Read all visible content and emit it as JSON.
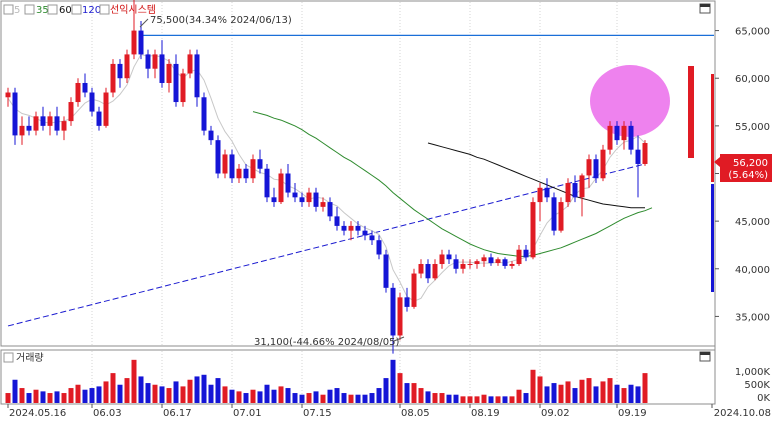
{
  "legend": {
    "ma_labels": [
      "5",
      "35",
      "60",
      "120"
    ],
    "ma_colors": [
      "#bbbbbb",
      "#2e8b2e",
      "#111111",
      "#1a1ad0"
    ],
    "stock_name": "선익시스템",
    "stock_color": "#d01010"
  },
  "annotations": {
    "high_label": "75,500(34.34% 2024/06/13)",
    "low_label": "31,100(-44.66% 2024/08/05)",
    "current_price": "56,200",
    "current_change": "(5.64%)"
  },
  "volume_panel": {
    "label": "거래량",
    "ticks": [
      "1,000K",
      "500K",
      "0K"
    ]
  },
  "colors": {
    "up": "#e01b24",
    "down": "#1515d6",
    "hline": "#1a6fd8",
    "circle": "#ee82ee",
    "bg": "#ffffff"
  },
  "chart_data": {
    "type": "candlestick",
    "ylim": [
      32000,
      68000
    ],
    "yticks": [
      35000,
      40000,
      45000,
      50000,
      55000,
      60000,
      65000
    ],
    "ytick_labels": [
      "35,000",
      "40,000",
      "45,000",
      "50,000",
      "55,000",
      "60,000",
      "65,000"
    ],
    "xtick_labels": [
      "2024.05.16",
      "06.03",
      "06.17",
      "07.01",
      "07.15",
      "08.05",
      "08.19",
      "09.02",
      "09.19",
      "2024.10.08"
    ],
    "xtick_index": [
      0,
      12,
      22,
      32,
      42,
      56,
      66,
      76,
      87,
      103
    ],
    "resistance_level": 64500,
    "candles": [
      [
        58000,
        59000,
        57000,
        58500,
        60
      ],
      [
        58500,
        59000,
        53000,
        54000,
        140
      ],
      [
        54000,
        56000,
        53000,
        55000,
        90
      ],
      [
        55000,
        56000,
        54000,
        54500,
        60
      ],
      [
        54500,
        56500,
        54000,
        56000,
        80
      ],
      [
        56000,
        57000,
        54500,
        55000,
        70
      ],
      [
        55000,
        56500,
        54000,
        56000,
        60
      ],
      [
        56000,
        57000,
        54000,
        54500,
        70
      ],
      [
        54500,
        56000,
        53500,
        55500,
        60
      ],
      [
        55500,
        58000,
        55000,
        57500,
        90
      ],
      [
        57500,
        60000,
        57000,
        59500,
        110
      ],
      [
        59500,
        60500,
        58000,
        58500,
        80
      ],
      [
        58500,
        59000,
        56000,
        56500,
        90
      ],
      [
        56500,
        57000,
        54500,
        55000,
        100
      ],
      [
        55000,
        59000,
        54800,
        58500,
        130
      ],
      [
        58500,
        62000,
        58000,
        61500,
        180
      ],
      [
        61500,
        62000,
        59000,
        60000,
        110
      ],
      [
        60000,
        63000,
        59500,
        62500,
        150
      ],
      [
        62500,
        75500,
        62000,
        65000,
        260
      ],
      [
        65000,
        66000,
        62000,
        62500,
        160
      ],
      [
        62500,
        63000,
        60000,
        61000,
        120
      ],
      [
        61000,
        63000,
        60000,
        62500,
        110
      ],
      [
        62500,
        64000,
        59000,
        59500,
        100
      ],
      [
        59500,
        62000,
        58500,
        61500,
        90
      ],
      [
        61500,
        62500,
        57000,
        57500,
        130
      ],
      [
        57500,
        61000,
        57000,
        60500,
        100
      ],
      [
        60500,
        63000,
        60000,
        62500,
        140
      ],
      [
        62500,
        63000,
        57000,
        58000,
        160
      ],
      [
        58000,
        58500,
        54000,
        54500,
        170
      ],
      [
        54500,
        55000,
        53000,
        53500,
        110
      ],
      [
        53500,
        54000,
        49500,
        50000,
        150
      ],
      [
        50000,
        52500,
        49500,
        52000,
        100
      ],
      [
        52000,
        52500,
        49000,
        49500,
        80
      ],
      [
        49500,
        51000,
        49000,
        50500,
        70
      ],
      [
        50500,
        51000,
        49000,
        49500,
        60
      ],
      [
        49500,
        52000,
        49000,
        51500,
        80
      ],
      [
        51500,
        52500,
        50000,
        50500,
        70
      ],
      [
        50500,
        51000,
        47000,
        47500,
        110
      ],
      [
        47500,
        48500,
        46500,
        47000,
        80
      ],
      [
        47000,
        50500,
        46800,
        50000,
        100
      ],
      [
        50000,
        51000,
        47500,
        48000,
        90
      ],
      [
        48000,
        49000,
        47000,
        47500,
        60
      ],
      [
        47500,
        48000,
        46500,
        47000,
        50
      ],
      [
        47000,
        48500,
        46500,
        48000,
        60
      ],
      [
        48000,
        48500,
        46000,
        46500,
        70
      ],
      [
        46500,
        47500,
        46000,
        47000,
        50
      ],
      [
        47000,
        47500,
        45000,
        45500,
        80
      ],
      [
        45500,
        46500,
        44000,
        44500,
        90
      ],
      [
        44500,
        45000,
        43500,
        44000,
        60
      ],
      [
        44000,
        45000,
        43000,
        44500,
        50
      ],
      [
        44500,
        45000,
        43500,
        44000,
        50
      ],
      [
        44000,
        44500,
        43000,
        43500,
        50
      ],
      [
        43500,
        44000,
        42500,
        43000,
        60
      ],
      [
        43000,
        43500,
        41000,
        41500,
        90
      ],
      [
        41500,
        42000,
        37500,
        38000,
        150
      ],
      [
        38000,
        38500,
        31100,
        33000,
        260
      ],
      [
        33000,
        37500,
        32500,
        37000,
        180
      ],
      [
        37000,
        38000,
        35500,
        36000,
        120
      ],
      [
        36000,
        40000,
        35800,
        39500,
        120
      ],
      [
        39500,
        41000,
        39000,
        40500,
        90
      ],
      [
        40500,
        41000,
        38500,
        39000,
        70
      ],
      [
        39000,
        41000,
        38800,
        40500,
        60
      ],
      [
        40500,
        42000,
        40000,
        41500,
        60
      ],
      [
        41500,
        42000,
        40500,
        41000,
        50
      ],
      [
        41000,
        41500,
        39500,
        40000,
        50
      ],
      [
        40000,
        41000,
        39500,
        40500,
        40
      ],
      [
        40500,
        41000,
        40000,
        40500,
        40
      ],
      [
        40500,
        41000,
        40000,
        40800,
        40
      ],
      [
        40800,
        41500,
        40200,
        41200,
        50
      ],
      [
        41200,
        41600,
        40300,
        40600,
        40
      ],
      [
        40600,
        41200,
        40300,
        41000,
        40
      ],
      [
        41000,
        41200,
        40000,
        40300,
        40
      ],
      [
        40300,
        40800,
        40000,
        40500,
        40
      ],
      [
        40500,
        42500,
        40300,
        42000,
        80
      ],
      [
        42000,
        42500,
        40800,
        41200,
        60
      ],
      [
        41200,
        47500,
        41000,
        47000,
        200
      ],
      [
        47000,
        49000,
        45000,
        48500,
        160
      ],
      [
        48500,
        49500,
        47000,
        47500,
        100
      ],
      [
        47500,
        48000,
        43500,
        44000,
        120
      ],
      [
        44000,
        47500,
        43800,
        47000,
        110
      ],
      [
        47000,
        49500,
        46500,
        49000,
        130
      ],
      [
        49000,
        49800,
        47000,
        47500,
        90
      ],
      [
        47500,
        50000,
        45500,
        49800,
        140
      ],
      [
        49800,
        52000,
        48500,
        51500,
        150
      ],
      [
        51500,
        52000,
        49000,
        49500,
        100
      ],
      [
        49500,
        53000,
        49200,
        52500,
        130
      ],
      [
        52500,
        55500,
        52000,
        55000,
        150
      ],
      [
        55000,
        55500,
        53000,
        53500,
        110
      ],
      [
        53500,
        55500,
        52500,
        55000,
        90
      ],
      [
        55000,
        55500,
        52000,
        52500,
        110
      ],
      [
        52500,
        54000,
        47500,
        51000,
        100
      ],
      [
        51000,
        53500,
        50800,
        53200,
        180
      ]
    ],
    "ma5": [
      57900,
      56800,
      56300,
      56100,
      55800,
      55400,
      55300,
      55400,
      55500,
      55800,
      56600,
      57400,
      57800,
      57600,
      57200,
      57600,
      58300,
      59300,
      61200,
      62500,
      62300,
      62400,
      62200,
      61800,
      60700,
      60000,
      60700,
      60900,
      59800,
      57900,
      55800,
      54400,
      53400,
      52000,
      50900,
      50500,
      50100,
      49900,
      49400,
      49300,
      48700,
      48400,
      47900,
      47300,
      47500,
      47400,
      46900,
      46600,
      45900,
      45300,
      44700,
      44300,
      44000,
      43600,
      42300,
      39900,
      38600,
      37100,
      36600,
      36900,
      38100,
      38800,
      39600,
      40300,
      40700,
      40700,
      40700,
      40600,
      40600,
      40600,
      40700,
      40600,
      40800,
      41000,
      41200,
      42100,
      43500,
      44800,
      45600,
      46000,
      46600,
      47800,
      48400,
      48500,
      49500,
      50400,
      51700,
      52600,
      53300,
      53500,
      53900,
      53200
    ],
    "ma35": [
      null,
      null,
      null,
      null,
      null,
      null,
      null,
      null,
      null,
      null,
      null,
      null,
      null,
      null,
      null,
      null,
      null,
      null,
      null,
      null,
      null,
      null,
      null,
      null,
      null,
      null,
      null,
      null,
      null,
      null,
      null,
      null,
      null,
      null,
      null,
      56500,
      56300,
      56100,
      55800,
      55600,
      55300,
      55000,
      54600,
      54100,
      53700,
      53200,
      52700,
      52200,
      51700,
      51300,
      50800,
      50300,
      49800,
      49300,
      48700,
      48000,
      47400,
      46800,
      46200,
      45700,
      45200,
      44700,
      44200,
      43800,
      43400,
      43000,
      42600,
      42300,
      42000,
      41800,
      41600,
      41500,
      41400,
      41300,
      41300,
      41400,
      41600,
      41800,
      42000,
      42200,
      42500,
      42800,
      43100,
      43400,
      43700,
      44100,
      44500,
      44900,
      45300,
      45600,
      45900,
      46100,
      46400
    ],
    "ma60": [
      null,
      null,
      null,
      null,
      null,
      null,
      null,
      null,
      null,
      null,
      null,
      null,
      null,
      null,
      null,
      null,
      null,
      null,
      null,
      null,
      null,
      null,
      null,
      null,
      null,
      null,
      null,
      null,
      null,
      null,
      null,
      null,
      null,
      null,
      null,
      null,
      null,
      null,
      null,
      null,
      null,
      null,
      null,
      null,
      null,
      null,
      null,
      null,
      null,
      null,
      null,
      null,
      null,
      null,
      null,
      null,
      null,
      null,
      null,
      null,
      53200,
      53000,
      52800,
      52600,
      52400,
      52200,
      52000,
      51700,
      51500,
      51200,
      50900,
      50600,
      50300,
      50000,
      49700,
      49400,
      49100,
      48800,
      48500,
      48200,
      47900,
      47600,
      47400,
      47200,
      47000,
      46800,
      46700,
      46600,
      46500,
      46400,
      46400,
      46400
    ],
    "ma120_start": [
      0,
      34000
    ],
    "ma120_end": [
      91,
      51000
    ]
  }
}
